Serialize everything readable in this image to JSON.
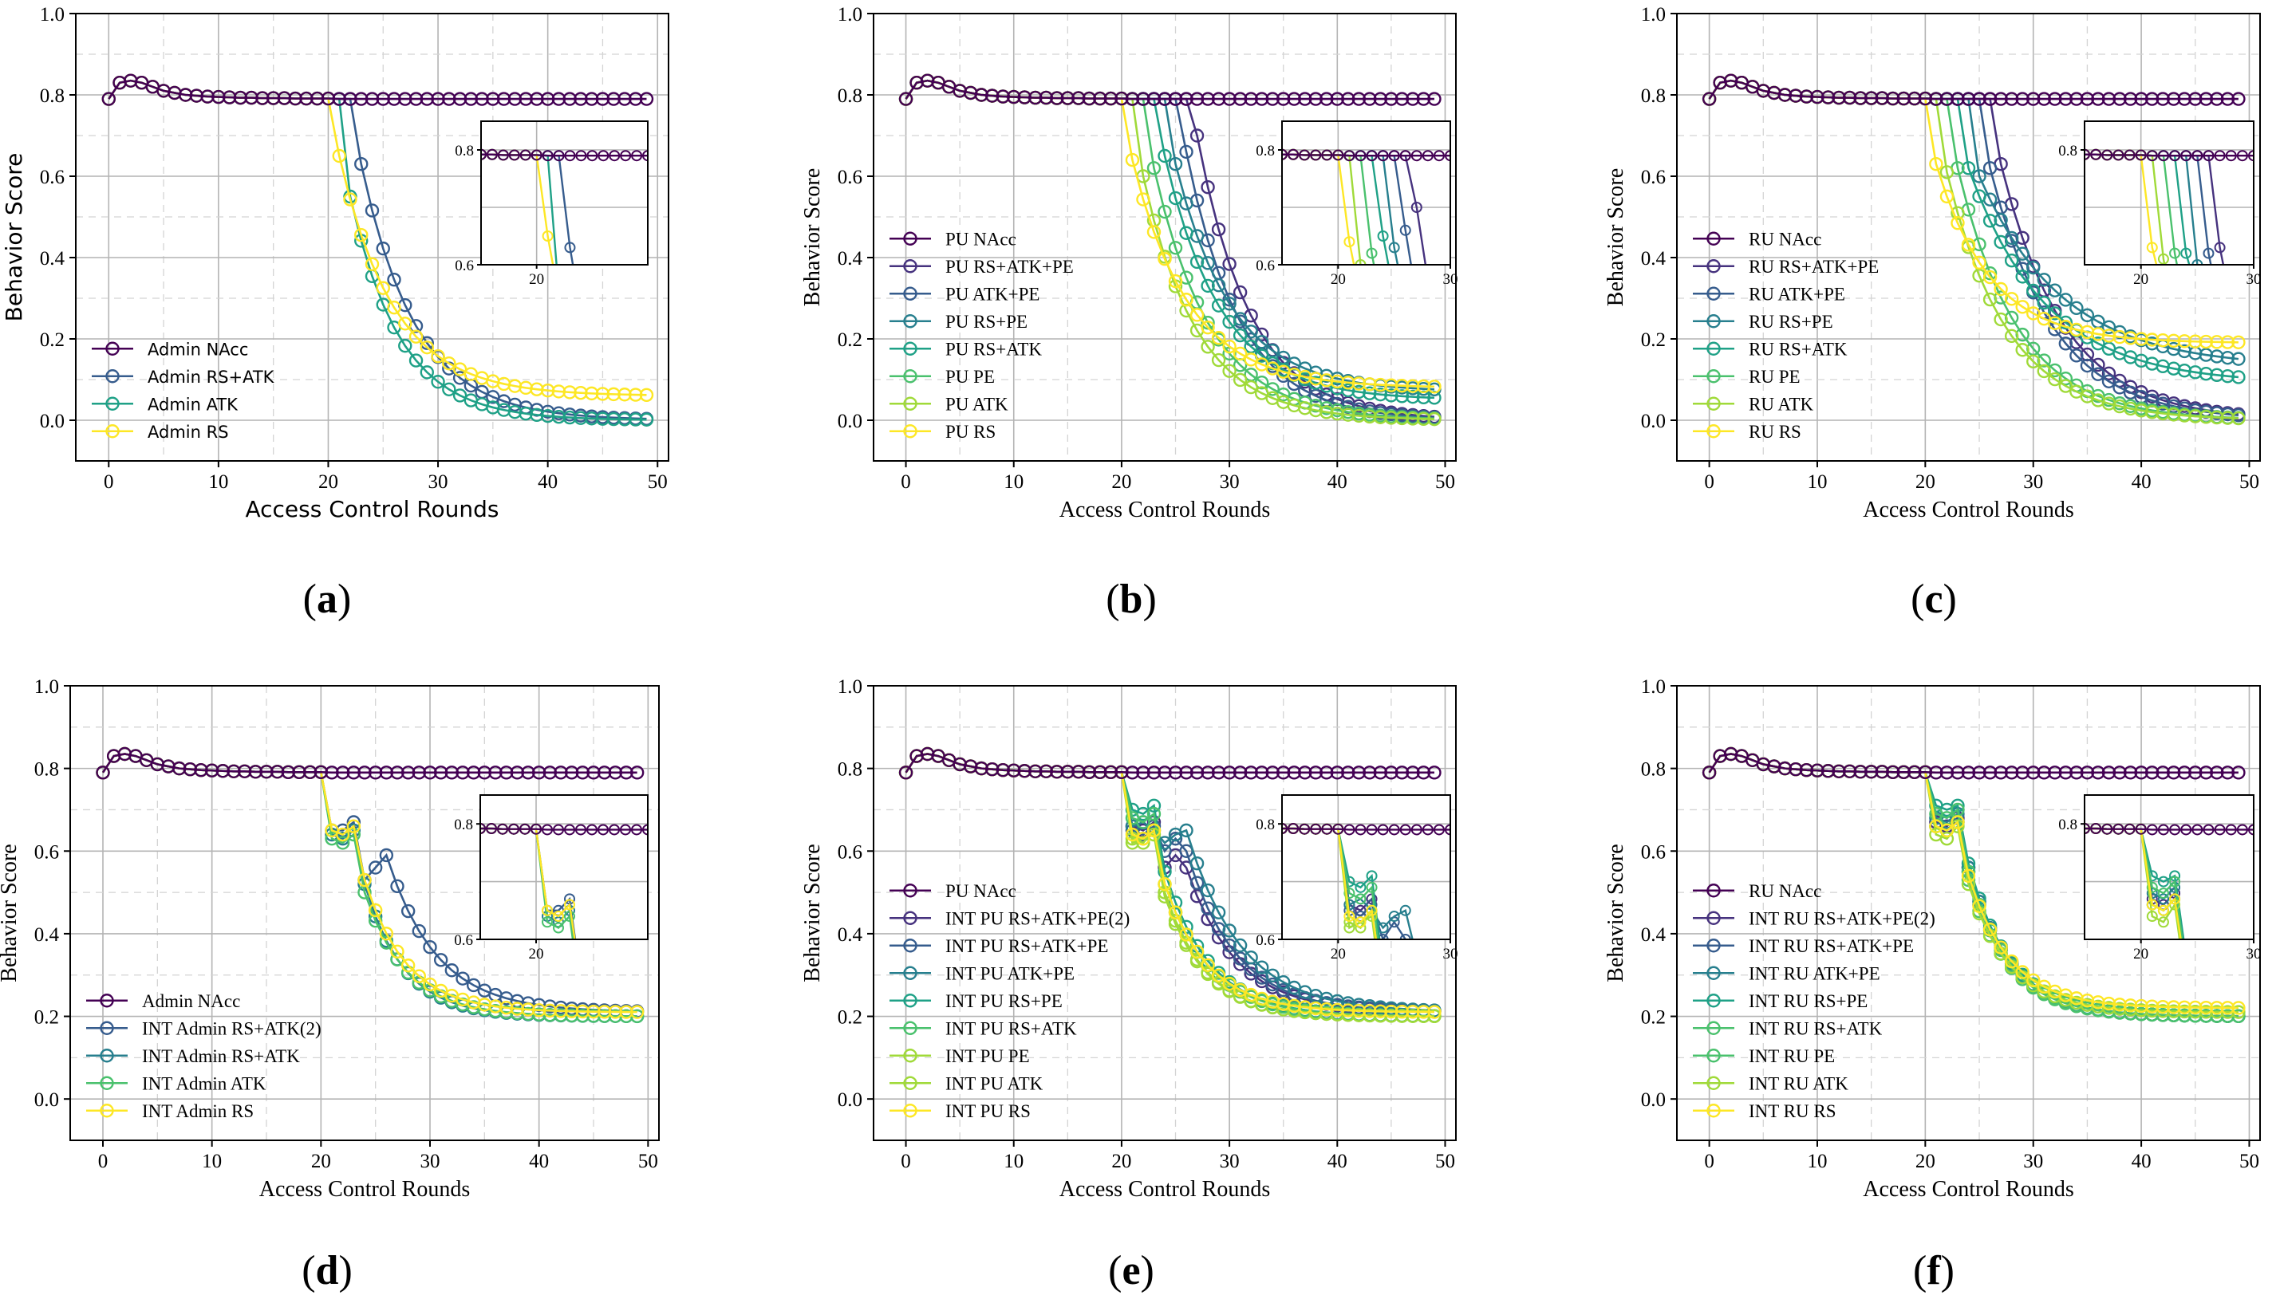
{
  "palette": [
    "#440154",
    "#46327e",
    "#365c8d",
    "#277f8e",
    "#1fa187",
    "#4ac16d",
    "#a0da39",
    "#fde725"
  ],
  "chart_data": [
    {
      "id": "a",
      "type": "line",
      "label_letter": "a",
      "font": "sans",
      "xlabel": "Access Control Rounds",
      "ylabel": "Behavior Score",
      "xlim": [
        -3,
        51
      ],
      "ylim": [
        -0.1,
        1.0
      ],
      "xticks": [
        "0",
        "10",
        "20",
        "30",
        "40",
        "50"
      ],
      "yticks": [
        "0.0",
        "0.2",
        "0.4",
        "0.6",
        "0.8",
        "1.0"
      ],
      "inset": {
        "xlim": [
          15,
          30
        ],
        "ylim": [
          0.6,
          0.85
        ],
        "xticks": [
          "20"
        ],
        "yticks": [
          "0.6",
          "0.8"
        ]
      },
      "series": [
        {
          "name": "Admin NAcc",
          "color_index": 0,
          "kind": "flat",
          "final": 0.79
        },
        {
          "name": "Admin RS+ATK",
          "color_index": 2,
          "kind": "decay",
          "drop": 23,
          "first": 0.63,
          "final": 0.0,
          "k": 0.2
        },
        {
          "name": "Admin ATK",
          "color_index": 4,
          "kind": "decay",
          "drop": 22,
          "first": 0.55,
          "final": 0.0,
          "k": 0.22
        },
        {
          "name": "Admin RS",
          "color_index": 7,
          "kind": "decay",
          "drop": 21,
          "first": 0.65,
          "final": 0.06,
          "k": 0.2
        }
      ]
    },
    {
      "id": "b",
      "type": "line",
      "label_letter": "b",
      "font": "serif",
      "xlabel": "Access Control Rounds",
      "ylabel": "Behavior Score",
      "xlim": [
        -3,
        51
      ],
      "ylim": [
        -0.1,
        1.0
      ],
      "xticks": [
        "0",
        "10",
        "20",
        "30",
        "40",
        "50"
      ],
      "yticks": [
        "0.0",
        "0.2",
        "0.4",
        "0.6",
        "0.8",
        "1.0"
      ],
      "inset": {
        "xlim": [
          15,
          30
        ],
        "ylim": [
          0.6,
          0.85
        ],
        "xticks": [
          "20",
          "30"
        ],
        "yticks": [
          "0.6",
          "0.8"
        ]
      },
      "series": [
        {
          "name": "PU NAcc",
          "color_index": 0,
          "kind": "flat",
          "final": 0.79
        },
        {
          "name": "PU RS+ATK+PE",
          "color_index": 1,
          "kind": "decay",
          "drop": 27,
          "first": 0.7,
          "final": 0.0,
          "k": 0.2
        },
        {
          "name": "PU ATK+PE",
          "color_index": 2,
          "kind": "decay",
          "drop": 26,
          "first": 0.66,
          "final": 0.0,
          "k": 0.2
        },
        {
          "name": "PU RS+PE",
          "color_index": 3,
          "kind": "decay",
          "drop": 25,
          "first": 0.63,
          "final": 0.07,
          "k": 0.19
        },
        {
          "name": "PU RS+ATK",
          "color_index": 4,
          "kind": "decay",
          "drop": 24,
          "first": 0.65,
          "final": 0.05,
          "k": 0.19
        },
        {
          "name": "PU PE",
          "color_index": 5,
          "kind": "decay",
          "drop": 23,
          "first": 0.62,
          "final": 0.0,
          "k": 0.19
        },
        {
          "name": "PU ATK",
          "color_index": 6,
          "kind": "decay",
          "drop": 22,
          "first": 0.6,
          "final": 0.0,
          "k": 0.2
        },
        {
          "name": "PU RS",
          "color_index": 7,
          "kind": "decay",
          "drop": 21,
          "first": 0.64,
          "final": 0.08,
          "k": 0.19
        }
      ]
    },
    {
      "id": "c",
      "type": "line",
      "label_letter": "c",
      "font": "serif",
      "xlabel": "Access Control Rounds",
      "ylabel": "Behavior Score",
      "xlim": [
        -3,
        51
      ],
      "ylim": [
        -0.1,
        1.0
      ],
      "xticks": [
        "0",
        "10",
        "20",
        "30",
        "40",
        "50"
      ],
      "yticks": [
        "0.0",
        "0.2",
        "0.4",
        "0.6",
        "0.8",
        "1.0"
      ],
      "inset": {
        "xlim": [
          15,
          30
        ],
        "ylim": [
          0.6,
          0.85
        ],
        "xticks": [
          "20",
          "30"
        ],
        "yticks": [
          "0.8"
        ]
      },
      "series": [
        {
          "name": "RU NAcc",
          "color_index": 0,
          "kind": "flat",
          "final": 0.79
        },
        {
          "name": "RU RS+ATK+PE",
          "color_index": 1,
          "kind": "decay",
          "drop": 27,
          "first": 0.63,
          "final": 0.0,
          "k": 0.17
        },
        {
          "name": "RU ATK+PE",
          "color_index": 2,
          "kind": "decay",
          "drop": 26,
          "first": 0.62,
          "final": 0.0,
          "k": 0.17
        },
        {
          "name": "RU RS+PE",
          "color_index": 3,
          "kind": "decay",
          "drop": 25,
          "first": 0.6,
          "final": 0.13,
          "k": 0.13
        },
        {
          "name": "RU RS+ATK",
          "color_index": 4,
          "kind": "decay",
          "drop": 24,
          "first": 0.62,
          "final": 0.09,
          "k": 0.14
        },
        {
          "name": "RU PE",
          "color_index": 5,
          "kind": "decay",
          "drop": 23,
          "first": 0.62,
          "final": 0.0,
          "k": 0.18
        },
        {
          "name": "RU ATK",
          "color_index": 6,
          "kind": "decay",
          "drop": 22,
          "first": 0.61,
          "final": 0.0,
          "k": 0.18
        },
        {
          "name": "RU RS",
          "color_index": 7,
          "kind": "decay",
          "drop": 21,
          "first": 0.63,
          "final": 0.19,
          "k": 0.2
        }
      ]
    },
    {
      "id": "d",
      "type": "line",
      "label_letter": "d",
      "font": "serif",
      "xlabel": "Access Control Rounds",
      "ylabel": "Behavior Score",
      "xlim": [
        -3,
        51
      ],
      "ylim": [
        -0.1,
        1.0
      ],
      "xticks": [
        "0",
        "10",
        "20",
        "30",
        "40",
        "50"
      ],
      "yticks": [
        "0.0",
        "0.2",
        "0.4",
        "0.6",
        "0.8",
        "1.0"
      ],
      "inset": {
        "xlim": [
          15,
          30
        ],
        "ylim": [
          0.6,
          0.85
        ],
        "xticks": [
          "20"
        ],
        "yticks": [
          "0.6",
          "0.8"
        ]
      },
      "series": [
        {
          "name": "Admin NAcc",
          "color_index": 0,
          "kind": "flat",
          "final": 0.79
        },
        {
          "name": "INT Admin RS+ATK(2)",
          "color_index": 2,
          "kind": "int",
          "drop": 21,
          "final": 0.21,
          "k": 0.22,
          "noise": [
            0.65,
            0.65,
            0.67,
            0.53,
            0.56,
            0.59
          ],
          "resume": 27
        },
        {
          "name": "INT Admin RS+ATK",
          "color_index": 3,
          "kind": "int",
          "drop": 21,
          "final": 0.2,
          "k": 0.28,
          "noise": [
            0.64,
            0.63,
            0.65,
            0.52
          ],
          "resume": 25
        },
        {
          "name": "INT Admin ATK",
          "color_index": 5,
          "kind": "int",
          "drop": 21,
          "final": 0.2,
          "k": 0.26,
          "noise": [
            0.63,
            0.62,
            0.64,
            0.5
          ],
          "resume": 25
        },
        {
          "name": "INT Admin RS",
          "color_index": 7,
          "kind": "int",
          "drop": 21,
          "final": 0.21,
          "k": 0.26,
          "noise": [
            0.65,
            0.64,
            0.66,
            0.53
          ],
          "resume": 25
        }
      ]
    },
    {
      "id": "e",
      "type": "line",
      "label_letter": "e",
      "font": "serif",
      "xlabel": "Access Control Rounds",
      "ylabel": "Behavior Score",
      "xlim": [
        -3,
        51
      ],
      "ylim": [
        -0.1,
        1.0
      ],
      "xticks": [
        "0",
        "10",
        "20",
        "30",
        "40",
        "50"
      ],
      "yticks": [
        "0.0",
        "0.2",
        "0.4",
        "0.6",
        "0.8",
        "1.0"
      ],
      "inset": {
        "xlim": [
          15,
          30
        ],
        "ylim": [
          0.6,
          0.85
        ],
        "xticks": [
          "20",
          "30"
        ],
        "yticks": [
          "0.6",
          "0.8"
        ]
      },
      "series": [
        {
          "name": "PU NAcc",
          "color_index": 0,
          "kind": "flat",
          "final": 0.79
        },
        {
          "name": "INT PU RS+ATK+PE(2)",
          "color_index": 1,
          "kind": "int",
          "drop": 21,
          "final": 0.21,
          "k": 0.22,
          "noise": [
            0.66,
            0.65,
            0.67,
            0.56,
            0.59,
            0.56
          ],
          "resume": 27
        },
        {
          "name": "INT PU RS+ATK+PE",
          "color_index": 2,
          "kind": "int",
          "drop": 21,
          "final": 0.21,
          "k": 0.22,
          "noise": [
            0.65,
            0.64,
            0.66,
            0.6,
            0.63,
            0.6
          ],
          "resume": 27
        },
        {
          "name": "INT PU ATK+PE",
          "color_index": 3,
          "kind": "int",
          "drop": 21,
          "final": 0.21,
          "k": 0.2,
          "noise": [
            0.66,
            0.67,
            0.65,
            0.62,
            0.64,
            0.65
          ],
          "resume": 27
        },
        {
          "name": "INT PU RS+PE",
          "color_index": 4,
          "kind": "int",
          "drop": 21,
          "final": 0.2,
          "k": 0.24,
          "noise": [
            0.7,
            0.69,
            0.71,
            0.55
          ],
          "resume": 25
        },
        {
          "name": "INT PU RS+ATK",
          "color_index": 5,
          "kind": "int",
          "drop": 21,
          "final": 0.2,
          "k": 0.24,
          "noise": [
            0.68,
            0.67,
            0.69,
            0.52
          ],
          "resume": 25
        },
        {
          "name": "INT PU PE",
          "color_index": 6,
          "kind": "int",
          "drop": 21,
          "final": 0.2,
          "k": 0.26,
          "noise": [
            0.63,
            0.62,
            0.65,
            0.5
          ],
          "resume": 25
        },
        {
          "name": "INT PU ATK",
          "color_index": 6,
          "kind": "int",
          "drop": 21,
          "final": 0.2,
          "k": 0.26,
          "noise": [
            0.62,
            0.63,
            0.64,
            0.49
          ],
          "resume": 25
        },
        {
          "name": "INT PU RS",
          "color_index": 7,
          "kind": "int",
          "drop": 21,
          "final": 0.21,
          "k": 0.25,
          "noise": [
            0.64,
            0.63,
            0.65,
            0.52
          ],
          "resume": 25
        }
      ]
    },
    {
      "id": "f",
      "type": "line",
      "label_letter": "f",
      "font": "serif",
      "xlabel": "Access Control Rounds",
      "ylabel": "Behavior Score",
      "xlim": [
        -3,
        51
      ],
      "ylim": [
        -0.1,
        1.0
      ],
      "xticks": [
        "0",
        "10",
        "20",
        "30",
        "40",
        "50"
      ],
      "yticks": [
        "0.0",
        "0.2",
        "0.4",
        "0.6",
        "0.8",
        "1.0"
      ],
      "inset": {
        "xlim": [
          15,
          30
        ],
        "ylim": [
          0.6,
          0.85
        ],
        "xticks": [
          "20",
          "30"
        ],
        "yticks": [
          "0.8"
        ]
      },
      "series": [
        {
          "name": "RU NAcc",
          "color_index": 0,
          "kind": "flat",
          "final": 0.79
        },
        {
          "name": "INT RU RS+ATK+PE(2)",
          "color_index": 1,
          "kind": "int",
          "drop": 21,
          "final": 0.2,
          "k": 0.26,
          "noise": [
            0.67,
            0.66,
            0.68,
            0.56
          ],
          "resume": 25
        },
        {
          "name": "INT RU RS+ATK+PE",
          "color_index": 2,
          "kind": "int",
          "drop": 21,
          "final": 0.2,
          "k": 0.26,
          "noise": [
            0.66,
            0.65,
            0.67,
            0.55
          ],
          "resume": 25
        },
        {
          "name": "INT RU ATK+PE",
          "color_index": 3,
          "kind": "int",
          "drop": 21,
          "final": 0.2,
          "k": 0.26,
          "noise": [
            0.68,
            0.67,
            0.69,
            0.56
          ],
          "resume": 25
        },
        {
          "name": "INT RU RS+PE",
          "color_index": 4,
          "kind": "int",
          "drop": 21,
          "final": 0.2,
          "k": 0.26,
          "noise": [
            0.71,
            0.7,
            0.71,
            0.57
          ],
          "resume": 25
        },
        {
          "name": "INT RU RS+ATK",
          "color_index": 5,
          "kind": "int",
          "drop": 21,
          "final": 0.2,
          "k": 0.26,
          "noise": [
            0.69,
            0.68,
            0.7,
            0.55
          ],
          "resume": 25
        },
        {
          "name": "INT RU PE",
          "color_index": 5,
          "kind": "int",
          "drop": 21,
          "final": 0.2,
          "k": 0.26,
          "noise": [
            0.66,
            0.65,
            0.67,
            0.53
          ],
          "resume": 25
        },
        {
          "name": "INT RU ATK",
          "color_index": 6,
          "kind": "int",
          "drop": 21,
          "final": 0.21,
          "k": 0.26,
          "noise": [
            0.64,
            0.63,
            0.66,
            0.52
          ],
          "resume": 25
        },
        {
          "name": "INT RU RS",
          "color_index": 7,
          "kind": "int",
          "drop": 21,
          "final": 0.22,
          "k": 0.26,
          "noise": [
            0.66,
            0.65,
            0.67,
            0.54
          ],
          "resume": 25
        }
      ]
    }
  ]
}
